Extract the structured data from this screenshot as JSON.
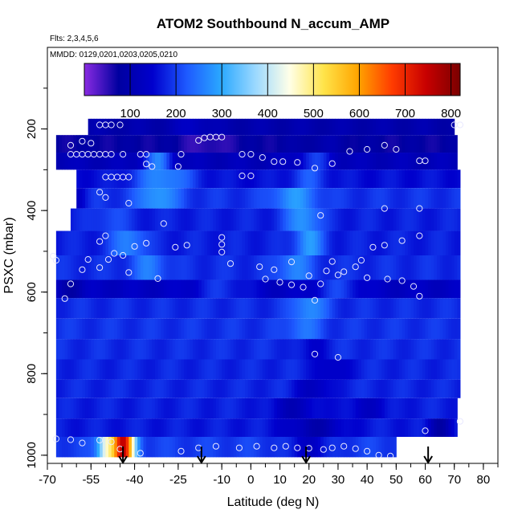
{
  "chart_data": {
    "type": "heatmap",
    "title": "ATOM2 Southbound N_accum_AMP",
    "subtitle_flts": "Flts: 2,3,4,5,6",
    "subtitle_mmdd": "MMDD: 0129,0201,0203,0205,0210",
    "xlabel": "Latitude (deg N)",
    "ylabel": "PSXC (mbar)",
    "xlim": [
      -70,
      85
    ],
    "ylim": [
      1020,
      0
    ],
    "x_ticks": [
      "-70",
      "-55",
      "-40",
      "-25",
      "-10",
      "0",
      "10",
      "20",
      "30",
      "40",
      "50",
      "60",
      "70",
      "80"
    ],
    "x_tick_values": [
      -70,
      -55,
      -40,
      -25,
      -10,
      0,
      10,
      20,
      30,
      40,
      50,
      60,
      70,
      80
    ],
    "y_ticks": [
      "200",
      "400",
      "600",
      "800",
      "1000"
    ],
    "y_tick_values": [
      200,
      400,
      600,
      800,
      1000
    ],
    "colorbar": {
      "range": [
        0,
        820
      ],
      "tick_values": [
        100,
        200,
        300,
        400,
        500,
        600,
        700,
        800
      ],
      "tick_labels": [
        "100",
        "200",
        "300",
        "400",
        "500",
        "600",
        "700",
        "800"
      ],
      "colors": [
        "#8a2be2",
        "#0000a0",
        "#0000cd",
        "#1e5aff",
        "#2aa8ff",
        "#9ad8ff",
        "#ffffe8",
        "#ffe44a",
        "#ffa500",
        "#ff3c00",
        "#c80000",
        "#7a0000"
      ]
    },
    "pressure_bands": [
      {
        "p_top": 175,
        "p_bottom": 215,
        "lat_min": -56,
        "lat_max": 70,
        "base": 95,
        "features": [
          [
            -20,
            6,
            40
          ]
        ]
      },
      {
        "p_top": 215,
        "p_bottom": 258,
        "lat_min": -67,
        "lat_max": 71,
        "base": 75,
        "features": [
          [
            -15,
            8,
            -30
          ],
          [
            25,
            10,
            20
          ]
        ]
      },
      {
        "p_top": 258,
        "p_bottom": 300,
        "lat_min": -67,
        "lat_max": 71,
        "base": 115,
        "features": [
          [
            -32,
            5,
            140
          ],
          [
            22,
            6,
            80
          ]
        ]
      },
      {
        "p_top": 300,
        "p_bottom": 345,
        "lat_min": -60,
        "lat_max": 72,
        "base": 160,
        "features": [
          [
            -30,
            10,
            110
          ],
          [
            20,
            6,
            60
          ]
        ]
      },
      {
        "p_top": 345,
        "p_bottom": 395,
        "lat_min": -60,
        "lat_max": 72,
        "base": 190,
        "features": [
          [
            -32,
            7,
            100
          ],
          [
            15,
            8,
            90
          ],
          [
            -60,
            4,
            -50
          ]
        ]
      },
      {
        "p_top": 395,
        "p_bottom": 450,
        "lat_min": -62,
        "lat_max": 72,
        "base": 175,
        "features": [
          [
            -48,
            6,
            40
          ],
          [
            18,
            6,
            110
          ]
        ]
      },
      {
        "p_top": 450,
        "p_bottom": 510,
        "lat_min": -67,
        "lat_max": 72,
        "base": 175,
        "features": [
          [
            -42,
            6,
            90
          ],
          [
            20,
            5,
            110
          ]
        ]
      },
      {
        "p_top": 510,
        "p_bottom": 570,
        "lat_min": -67,
        "lat_max": 72,
        "base": 185,
        "features": [
          [
            -35,
            6,
            70
          ],
          [
            15,
            6,
            80
          ]
        ]
      },
      {
        "p_top": 570,
        "p_bottom": 615,
        "lat_min": -67,
        "lat_max": 72,
        "base": 130,
        "features": [
          [
            -10,
            10,
            60
          ],
          [
            30,
            8,
            70
          ],
          [
            -62,
            4,
            -40
          ]
        ]
      },
      {
        "p_top": 615,
        "p_bottom": 665,
        "lat_min": -67,
        "lat_max": 72,
        "base": 185,
        "features": [
          [
            20,
            6,
            90
          ]
        ]
      },
      {
        "p_top": 665,
        "p_bottom": 715,
        "lat_min": -67,
        "lat_max": 72,
        "base": 190,
        "features": [
          [
            18,
            6,
            60
          ]
        ]
      },
      {
        "p_top": 715,
        "p_bottom": 765,
        "lat_min": -67,
        "lat_max": 72,
        "base": 185,
        "features": [
          [
            21,
            5,
            -40
          ]
        ]
      },
      {
        "p_top": 765,
        "p_bottom": 815,
        "lat_min": -67,
        "lat_max": 72,
        "base": 180,
        "features": [
          [
            28,
            6,
            -50
          ]
        ]
      },
      {
        "p_top": 815,
        "p_bottom": 860,
        "lat_min": -67,
        "lat_max": 72,
        "base": 180,
        "features": [
          [
            22,
            6,
            -60
          ]
        ]
      },
      {
        "p_top": 860,
        "p_bottom": 910,
        "lat_min": -67,
        "lat_max": 71,
        "base": 175,
        "features": [
          [
            15,
            8,
            -60
          ],
          [
            40,
            8,
            -40
          ]
        ]
      },
      {
        "p_top": 910,
        "p_bottom": 955,
        "lat_min": -67,
        "lat_max": 71,
        "base": 170,
        "features": [
          [
            22,
            10,
            -70
          ],
          [
            65,
            4,
            -80
          ]
        ]
      },
      {
        "p_top": 955,
        "p_bottom": 1005,
        "lat_min": -67,
        "lat_max": 50,
        "base": 200,
        "features": [
          [
            -44,
            4,
            540
          ],
          [
            -50,
            3,
            200
          ],
          [
            20,
            8,
            -60
          ]
        ]
      }
    ],
    "sample_points": [
      [
        -52,
        190
      ],
      [
        -50,
        190
      ],
      [
        -48,
        190
      ],
      [
        -45,
        190
      ],
      [
        -62,
        240
      ],
      [
        -58,
        230
      ],
      [
        -55,
        235
      ],
      [
        -62,
        262
      ],
      [
        -60,
        262
      ],
      [
        -58,
        262
      ],
      [
        -56,
        262
      ],
      [
        -54,
        262
      ],
      [
        -52,
        262
      ],
      [
        -50,
        262
      ],
      [
        -48,
        262
      ],
      [
        -44,
        262
      ],
      [
        -38,
        262
      ],
      [
        -36,
        262
      ],
      [
        -24,
        262
      ],
      [
        -18,
        228
      ],
      [
        -16,
        222
      ],
      [
        -14,
        220
      ],
      [
        -12,
        220
      ],
      [
        -10,
        220
      ],
      [
        -3,
        262
      ],
      [
        0,
        262
      ],
      [
        4,
        270
      ],
      [
        8,
        280
      ],
      [
        11,
        280
      ],
      [
        16,
        282
      ],
      [
        22,
        296
      ],
      [
        28,
        285
      ],
      [
        34,
        255
      ],
      [
        40,
        250
      ],
      [
        46,
        240
      ],
      [
        50,
        250
      ],
      [
        58,
        278
      ],
      [
        60,
        278
      ],
      [
        70,
        190
      ],
      [
        72,
        190
      ],
      [
        -36,
        286
      ],
      [
        -34,
        292
      ],
      [
        -25,
        292
      ],
      [
        -50,
        318
      ],
      [
        -48,
        318
      ],
      [
        -46,
        318
      ],
      [
        -44,
        318
      ],
      [
        -42,
        318
      ],
      [
        -52,
        355
      ],
      [
        -50,
        368
      ],
      [
        -42,
        382
      ],
      [
        -3,
        315
      ],
      [
        0,
        315
      ],
      [
        24,
        412
      ],
      [
        46,
        395
      ],
      [
        58,
        395
      ],
      [
        -30,
        432
      ],
      [
        -10,
        466
      ],
      [
        -10,
        483
      ],
      [
        -22,
        485
      ],
      [
        -26,
        490
      ],
      [
        -36,
        480
      ],
      [
        -50,
        462
      ],
      [
        -52,
        476
      ],
      [
        -40,
        488
      ],
      [
        -10,
        502
      ],
      [
        -7,
        530
      ],
      [
        3,
        538
      ],
      [
        8,
        545
      ],
      [
        14,
        526
      ],
      [
        20,
        560
      ],
      [
        24,
        580
      ],
      [
        26,
        548
      ],
      [
        28,
        525
      ],
      [
        32,
        550
      ],
      [
        36,
        538
      ],
      [
        38,
        522
      ],
      [
        42,
        490
      ],
      [
        46,
        485
      ],
      [
        52,
        474
      ],
      [
        58,
        462
      ],
      [
        -47,
        505
      ],
      [
        -44,
        510
      ],
      [
        -49,
        520
      ],
      [
        -52,
        540
      ],
      [
        -56,
        520
      ],
      [
        -58,
        545
      ],
      [
        -62,
        580
      ],
      [
        -64,
        616
      ],
      [
        -68,
        512
      ],
      [
        -67,
        522
      ],
      [
        -32,
        567
      ],
      [
        -42,
        552
      ],
      [
        5,
        568
      ],
      [
        10,
        576
      ],
      [
        14,
        582
      ],
      [
        18,
        588
      ],
      [
        22,
        620
      ],
      [
        30,
        558
      ],
      [
        40,
        565
      ],
      [
        47,
        568
      ],
      [
        52,
        572
      ],
      [
        56,
        586
      ],
      [
        58,
        610
      ],
      [
        22,
        752
      ],
      [
        30,
        760
      ],
      [
        72,
        917
      ],
      [
        60,
        940
      ],
      [
        -67,
        960
      ],
      [
        -62,
        962
      ],
      [
        -58,
        970
      ],
      [
        -52,
        963
      ],
      [
        -48,
        967
      ],
      [
        -45,
        985
      ],
      [
        -38,
        995
      ],
      [
        -24,
        990
      ],
      [
        -18,
        982
      ],
      [
        -12,
        978
      ],
      [
        -4,
        982
      ],
      [
        2,
        978
      ],
      [
        8,
        982
      ],
      [
        12,
        978
      ],
      [
        16,
        982
      ],
      [
        20,
        983
      ],
      [
        25,
        986
      ],
      [
        28,
        982
      ],
      [
        32,
        978
      ],
      [
        36,
        984
      ],
      [
        40,
        990
      ],
      [
        44,
        1000
      ],
      [
        48,
        1002
      ]
    ],
    "arrows_lat": [
      -44,
      -17,
      19,
      61
    ]
  }
}
